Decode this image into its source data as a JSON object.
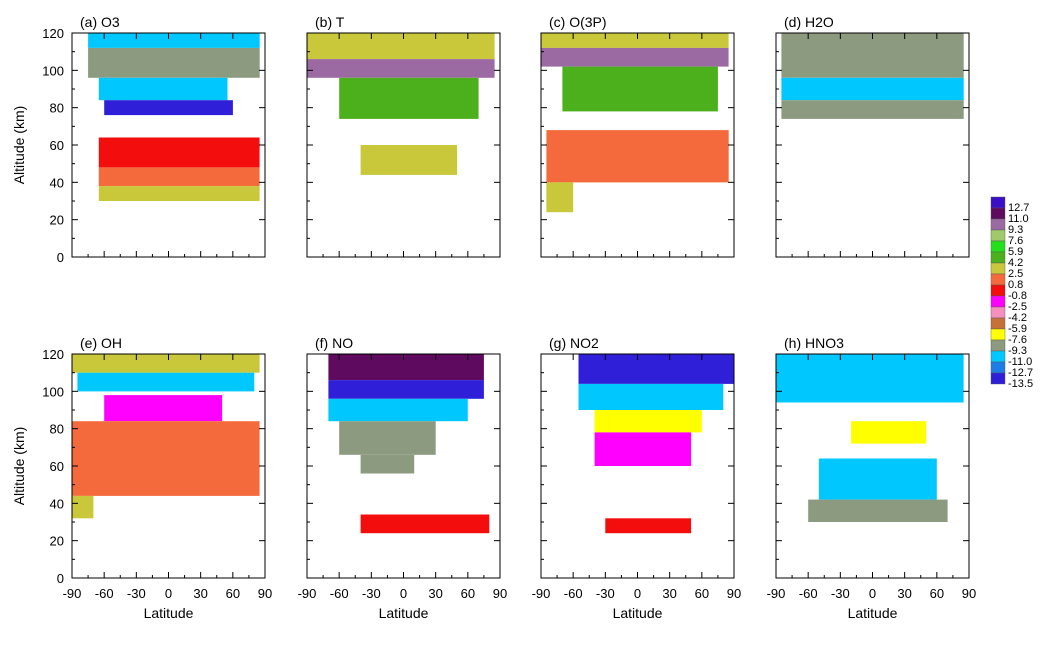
{
  "chart_data": {
    "type": "heatmap",
    "colorbar": {
      "labels": [
        "12.7",
        "11.0",
        "9.3",
        "7.6",
        "5.9",
        "4.2",
        "2.5",
        "0.8",
        "-0.8",
        "-2.5",
        "-4.2",
        "-5.9",
        "-7.6",
        "-9.3",
        "-11.0",
        "-12.7",
        "-13.5"
      ],
      "colors": [
        "#3b0fc8",
        "#5e0a5e",
        "#9c6aa2",
        "#9fc96b",
        "#22e01b",
        "#4caf1c",
        "#c8c83a",
        "#f46a3c",
        "#f30d0d",
        "#ff00ff",
        "#f48fbe",
        "#c7703a",
        "#ffff00",
        "#8c9a80",
        "#00c8ff",
        "#1e7ce6",
        "#2f1fd8"
      ]
    },
    "panels": [
      {
        "label": "(a)",
        "name": "O3",
        "bands": [
          {
            "alt": [
              112,
              120
            ],
            "lat": [
              -75,
              85
            ],
            "v": -11.0
          },
          {
            "alt": [
              96,
              112
            ],
            "lat": [
              -75,
              85
            ],
            "v": -9.3
          },
          {
            "alt": [
              84,
              96
            ],
            "lat": [
              -65,
              55
            ],
            "v": -11.0
          },
          {
            "alt": [
              76,
              84
            ],
            "lat": [
              -60,
              60
            ],
            "v": -13.5
          },
          {
            "alt": [
              48,
              64
            ],
            "lat": [
              -65,
              85
            ],
            "v": -0.8
          },
          {
            "alt": [
              38,
              48
            ],
            "lat": [
              -65,
              85
            ],
            "v": 0.8
          },
          {
            "alt": [
              30,
              38
            ],
            "lat": [
              -65,
              85
            ],
            "v": 2.5
          }
        ]
      },
      {
        "label": "(b)",
        "name": "T",
        "bands": [
          {
            "alt": [
              106,
              120
            ],
            "lat": [
              -90,
              85
            ],
            "v": 2.5
          },
          {
            "alt": [
              96,
              106
            ],
            "lat": [
              -90,
              85
            ],
            "v": 9.3
          },
          {
            "alt": [
              74,
              96
            ],
            "lat": [
              -60,
              70
            ],
            "v": 4.2
          },
          {
            "alt": [
              44,
              60
            ],
            "lat": [
              -40,
              50
            ],
            "v": 2.5
          }
        ]
      },
      {
        "label": "(c)",
        "name": "O(3P)",
        "bands": [
          {
            "alt": [
              112,
              120
            ],
            "lat": [
              -90,
              85
            ],
            "v": 2.5
          },
          {
            "alt": [
              102,
              112
            ],
            "lat": [
              -90,
              85
            ],
            "v": 9.3
          },
          {
            "alt": [
              78,
              102
            ],
            "lat": [
              -70,
              75
            ],
            "v": 4.2
          },
          {
            "alt": [
              40,
              68
            ],
            "lat": [
              -85,
              85
            ],
            "v": 0.8
          },
          {
            "alt": [
              24,
              40
            ],
            "lat": [
              -85,
              -60
            ],
            "v": 2.5
          }
        ]
      },
      {
        "label": "(d)",
        "name": "H2O",
        "bands": [
          {
            "alt": [
              96,
              120
            ],
            "lat": [
              -85,
              85
            ],
            "v": -9.3
          },
          {
            "alt": [
              84,
              96
            ],
            "lat": [
              -85,
              85
            ],
            "v": -11.0
          },
          {
            "alt": [
              74,
              84
            ],
            "lat": [
              -85,
              85
            ],
            "v": -9.3
          }
        ]
      },
      {
        "label": "(e)",
        "name": "OH",
        "bands": [
          {
            "alt": [
              110,
              120
            ],
            "lat": [
              -90,
              85
            ],
            "v": 2.5
          },
          {
            "alt": [
              100,
              110
            ],
            "lat": [
              -85,
              80
            ],
            "v": -11.0
          },
          {
            "alt": [
              84,
              98
            ],
            "lat": [
              -60,
              50
            ],
            "v": -2.5
          },
          {
            "alt": [
              44,
              84
            ],
            "lat": [
              -90,
              85
            ],
            "v": 0.8
          },
          {
            "alt": [
              32,
              44
            ],
            "lat": [
              -90,
              -70
            ],
            "v": 2.5
          }
        ]
      },
      {
        "label": "(f)",
        "name": "NO",
        "bands": [
          {
            "alt": [
              106,
              120
            ],
            "lat": [
              -70,
              75
            ],
            "v": 11.0
          },
          {
            "alt": [
              96,
              106
            ],
            "lat": [
              -70,
              75
            ],
            "v": -13.5
          },
          {
            "alt": [
              84,
              96
            ],
            "lat": [
              -70,
              60
            ],
            "v": -11.0
          },
          {
            "alt": [
              66,
              84
            ],
            "lat": [
              -60,
              30
            ],
            "v": -9.3
          },
          {
            "alt": [
              56,
              66
            ],
            "lat": [
              -40,
              10
            ],
            "v": -9.3
          },
          {
            "alt": [
              24,
              34
            ],
            "lat": [
              -40,
              80
            ],
            "v": -0.8
          }
        ]
      },
      {
        "label": "(g)",
        "name": "NO2",
        "bands": [
          {
            "alt": [
              104,
              120
            ],
            "lat": [
              -55,
              90
            ],
            "v": -13.5
          },
          {
            "alt": [
              90,
              104
            ],
            "lat": [
              -55,
              80
            ],
            "v": -11.0
          },
          {
            "alt": [
              78,
              90
            ],
            "lat": [
              -40,
              60
            ],
            "v": -7.6
          },
          {
            "alt": [
              60,
              78
            ],
            "lat": [
              -40,
              50
            ],
            "v": -2.5
          },
          {
            "alt": [
              24,
              32
            ],
            "lat": [
              -30,
              50
            ],
            "v": -0.8
          }
        ]
      },
      {
        "label": "(h)",
        "name": "HNO3",
        "bands": [
          {
            "alt": [
              94,
              120
            ],
            "lat": [
              -90,
              85
            ],
            "v": -11.0
          },
          {
            "alt": [
              72,
              84
            ],
            "lat": [
              -20,
              50
            ],
            "v": -7.6
          },
          {
            "alt": [
              42,
              64
            ],
            "lat": [
              -50,
              60
            ],
            "v": -11.0
          },
          {
            "alt": [
              30,
              42
            ],
            "lat": [
              -60,
              70
            ],
            "v": -9.3
          }
        ]
      }
    ],
    "x_axis": {
      "label": "Latitude",
      "range": [
        -90,
        90
      ],
      "ticks": [
        "-90",
        "-60",
        "-30",
        "0",
        "30",
        "60",
        "90"
      ]
    },
    "y_axis": {
      "label": "Altitude (km)",
      "range": [
        0,
        120
      ],
      "ticks": [
        "0",
        "20",
        "40",
        "60",
        "80",
        "100",
        "120"
      ]
    }
  }
}
